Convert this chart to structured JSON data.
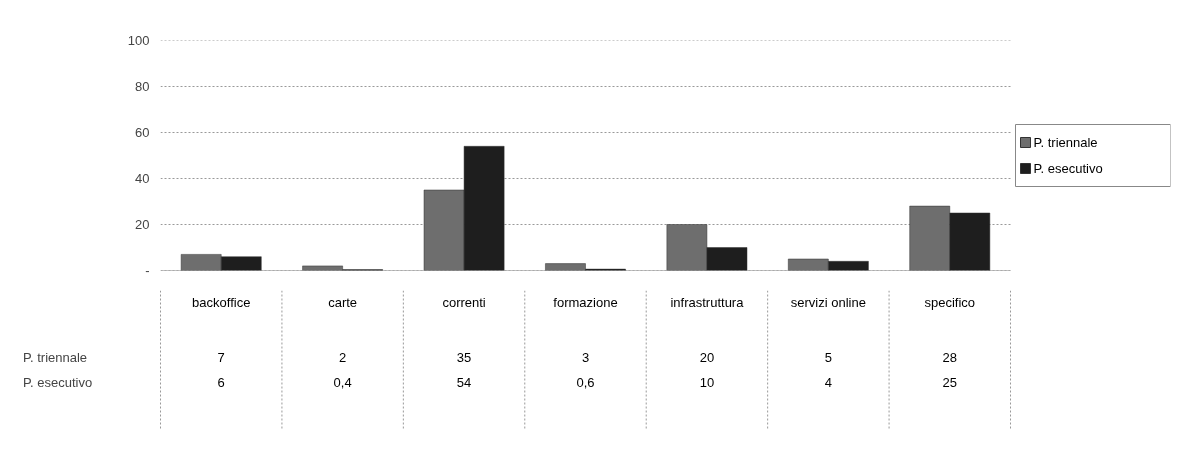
{
  "chart_data": {
    "type": "bar",
    "categories": [
      "backoffice",
      "carte",
      "correnti",
      "formazione",
      "infrastruttura",
      "servizi online",
      "specifico"
    ],
    "series": [
      {
        "name": "P. triennale",
        "color": "#6e6e6e",
        "values": [
          7,
          2,
          35,
          3,
          20,
          5,
          28
        ],
        "value_labels": [
          "7",
          "2",
          "35",
          "3",
          "20",
          "5",
          "28"
        ]
      },
      {
        "name": "P. esecutivo",
        "color": "#1e1e1e",
        "values": [
          6,
          0.4,
          54,
          0.6,
          10,
          4,
          25
        ],
        "value_labels": [
          "6",
          "0,4",
          "54",
          "0,6",
          "10",
          "4",
          "25"
        ]
      }
    ],
    "ylim": [
      0,
      100
    ],
    "yticks": [
      {
        "value": 0,
        "label": "-"
      },
      20,
      40,
      60,
      80,
      100
    ],
    "grid": "y",
    "legend": "right"
  }
}
